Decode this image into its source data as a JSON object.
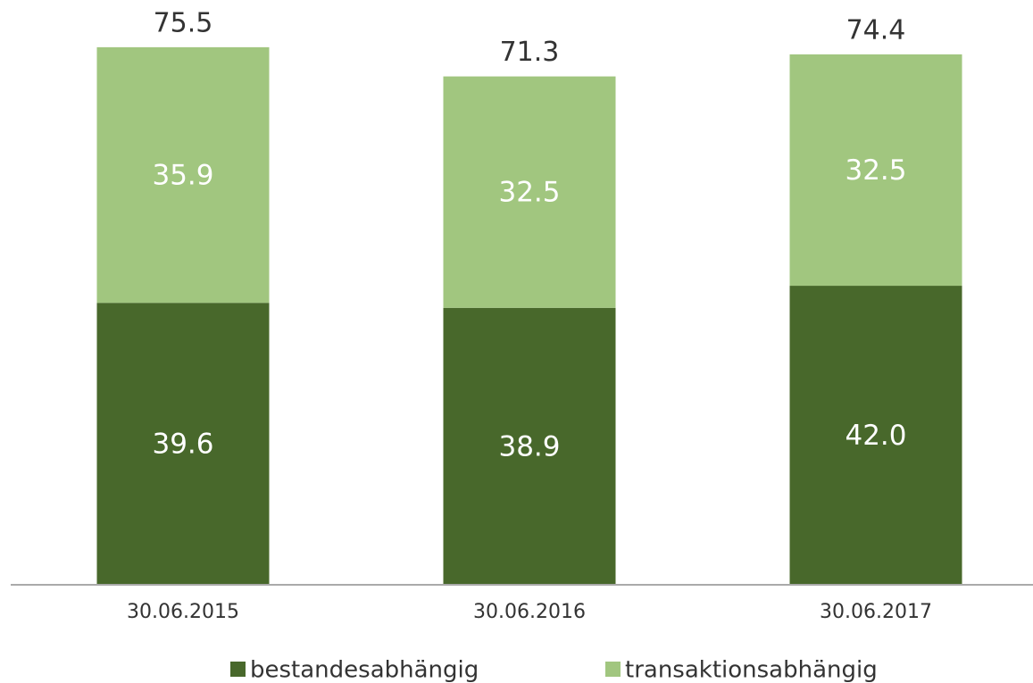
{
  "chart_data": {
    "type": "stacked_bar",
    "categories": [
      "30.06.2015",
      "30.06.2016",
      "30.06.2017"
    ],
    "series": [
      {
        "name": "bestandesabhängig",
        "color": "#48682b",
        "values": [
          39.6,
          38.9,
          42.0
        ],
        "value_labels": [
          "39.6",
          "38.9",
          "42.0"
        ]
      },
      {
        "name": "transaktionsabhängig",
        "color": "#a1c67f",
        "values": [
          35.9,
          32.5,
          32.5
        ],
        "value_labels": [
          "35.9",
          "32.5",
          "32.5"
        ]
      }
    ],
    "totals": [
      75.5,
      71.3,
      74.4
    ],
    "ylim": [
      0,
      80
    ]
  }
}
